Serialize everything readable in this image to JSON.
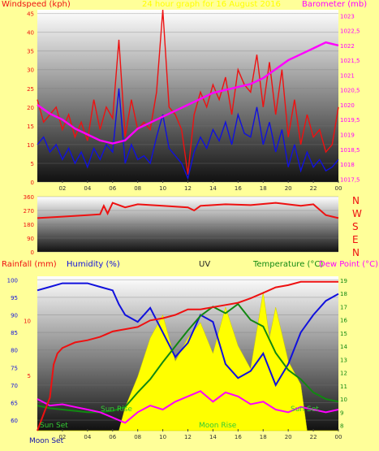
{
  "colors": {
    "windspeed": "#ee1111",
    "barometer": "#ff00ff",
    "direction": "#ee1111",
    "rainfall": "#ee1111",
    "humidity": "#1111dd",
    "uv": "#ffff00",
    "temperature": "#118811",
    "dewpoint": "#ff00ff",
    "title": "#ffff00",
    "text_dark": "#222222",
    "nwsen": "#ee1111"
  },
  "chart_data": [
    {
      "type": "line",
      "left_axis_label": "Windspeed (kph)",
      "right_axis_label": "Barometer (mb)",
      "title": "24 hour graph for 16 August 2016",
      "x_ticks": [
        "02",
        "04",
        "06",
        "08",
        "10",
        "12",
        "14",
        "16",
        "18",
        "20",
        "22",
        "00"
      ],
      "y_left_ticks": [
        "0",
        "5",
        "10",
        "15",
        "20",
        "25",
        "30",
        "35",
        "40",
        "45"
      ],
      "y_left_range": [
        0,
        46
      ],
      "y_right_ticks": [
        "1017,5",
        "1018",
        "1018,5",
        "1019",
        "1019,5",
        "1020",
        "1020,5",
        "1021",
        "1021,5",
        "1022",
        "1022,5",
        "1023"
      ],
      "y_right_range": [
        1017.4,
        1023.2
      ],
      "series": [
        {
          "name": "gust",
          "x": [
            0,
            0.5,
            1,
            1.5,
            2,
            2.5,
            3,
            3.5,
            4,
            4.5,
            5,
            5.5,
            6,
            6.5,
            7,
            7.5,
            8,
            8.5,
            9,
            9.5,
            10,
            10.5,
            11,
            11.5,
            12,
            12.5,
            13,
            13.5,
            14,
            14.5,
            15,
            15.5,
            16,
            16.5,
            17,
            17.5,
            18,
            18.5,
            19,
            19.5,
            20,
            20.5,
            21,
            21.5,
            22,
            22.5,
            23,
            23.5,
            24
          ],
          "y": [
            22,
            16,
            18,
            20,
            14,
            18,
            12,
            16,
            11,
            22,
            14,
            20,
            17,
            38,
            12,
            22,
            14,
            16,
            14,
            24,
            46,
            20,
            18,
            14,
            2,
            18,
            24,
            20,
            26,
            22,
            28,
            18,
            30,
            26,
            24,
            34,
            20,
            32,
            18,
            30,
            12,
            22,
            10,
            18,
            12,
            14,
            8,
            10,
            20
          ]
        },
        {
          "name": "average",
          "x": [
            0,
            0.5,
            1,
            1.5,
            2,
            2.5,
            3,
            3.5,
            4,
            4.5,
            5,
            5.5,
            6,
            6.5,
            7,
            7.5,
            8,
            8.5,
            9,
            9.5,
            10,
            10.5,
            11,
            11.5,
            12,
            12.5,
            13,
            13.5,
            14,
            14.5,
            15,
            15.5,
            16,
            16.5,
            17,
            17.5,
            18,
            18.5,
            19,
            19.5,
            20,
            20.5,
            21,
            21.5,
            22,
            22.5,
            23,
            23.5,
            24
          ],
          "y": [
            10,
            12,
            8,
            10,
            6,
            9,
            5,
            8,
            4,
            9,
            6,
            10,
            8,
            25,
            5,
            10,
            6,
            7,
            5,
            12,
            18,
            9,
            7,
            5,
            1,
            8,
            12,
            9,
            14,
            11,
            16,
            10,
            18,
            13,
            12,
            20,
            10,
            16,
            8,
            14,
            4,
            10,
            3,
            8,
            4,
            6,
            3,
            4,
            6
          ]
        },
        {
          "name": "barometer",
          "x": [
            0,
            1,
            2,
            3,
            4,
            5,
            6,
            7,
            8,
            9,
            10,
            11,
            12,
            13,
            14,
            15,
            16,
            17,
            18,
            19,
            20,
            21,
            22,
            23,
            24
          ],
          "y": [
            1020,
            1019.7,
            1019.5,
            1019.2,
            1019,
            1018.8,
            1018.7,
            1018.8,
            1019.2,
            1019.4,
            1019.6,
            1019.8,
            1020,
            1020.2,
            1020.4,
            1020.5,
            1020.6,
            1020.7,
            1020.9,
            1021.2,
            1021.5,
            1021.7,
            1021.9,
            1022.1,
            1022
          ]
        }
      ]
    },
    {
      "type": "line",
      "left_axis_label": "",
      "right_axis_label": "NWSEN",
      "y_left_ticks": [
        "0",
        "90",
        "180",
        "270",
        "360"
      ],
      "y_left_range": [
        0,
        360
      ],
      "compass_letters": [
        "N",
        "W",
        "S",
        "E",
        "N"
      ],
      "series": [
        {
          "name": "wind direction",
          "x": [
            0,
            2,
            4,
            5,
            5.3,
            5.6,
            6,
            7,
            8,
            10,
            12,
            12.5,
            13,
            15,
            17,
            19,
            21,
            22,
            23,
            24
          ],
          "y": [
            220,
            230,
            240,
            245,
            300,
            250,
            320,
            290,
            310,
            300,
            290,
            270,
            300,
            310,
            305,
            320,
            300,
            310,
            240,
            220
          ]
        }
      ]
    },
    {
      "type": "line",
      "left_axis_label": "Rainfall (mm)",
      "humidity_label": "Humidity (%)",
      "uv_label": "UV",
      "right_axis_label": "Temperature (°C)",
      "dewpoint_label": "Dew Point (°C)",
      "y_humidity_ticks": [
        "60",
        "65",
        "70",
        "75",
        "80",
        "85",
        "90",
        "95",
        "100"
      ],
      "y_humidity_range": [
        57,
        101
      ],
      "y_rain_ticks": [
        "5",
        "10"
      ],
      "y_rain_range": [
        0,
        14
      ],
      "y_temp_ticks": [
        "8",
        "9",
        "10",
        "11",
        "12",
        "13",
        "14",
        "15",
        "16",
        "17",
        "18",
        "19"
      ],
      "y_temp_range": [
        7.6,
        19.3
      ],
      "annotations": [
        "Sun Set",
        "Moon Set",
        "Sun Rise",
        "Moon Rise",
        "Sun Set"
      ],
      "series": [
        {
          "name": "rainfall",
          "x": [
            0,
            0.5,
            1,
            1.3,
            1.6,
            2,
            3,
            4,
            5,
            6,
            7,
            8,
            9,
            10,
            11,
            12,
            13,
            14,
            15,
            16,
            17,
            18,
            19,
            20,
            21,
            22,
            23,
            24
          ],
          "y": [
            0,
            1.5,
            3,
            6,
            7,
            7.5,
            8,
            8.2,
            8.5,
            9,
            9.2,
            9.4,
            10,
            10.2,
            10.5,
            11,
            11,
            11.2,
            11.4,
            11.6,
            12,
            12.5,
            13,
            13.2,
            13.5,
            13.5,
            13.5,
            13.5
          ]
        },
        {
          "name": "humidity",
          "x": [
            0,
            1,
            2,
            3,
            4,
            5,
            6,
            6.5,
            7,
            8,
            9,
            10,
            11,
            12,
            13,
            14,
            15,
            16,
            17,
            18,
            19,
            20,
            21,
            22,
            23,
            24
          ],
          "y": [
            97,
            98,
            99,
            99,
            99,
            98,
            97,
            93,
            90,
            88,
            92,
            85,
            78,
            82,
            90,
            88,
            76,
            72,
            74,
            79,
            70,
            76,
            85,
            90,
            94,
            96
          ]
        },
        {
          "name": "temperature",
          "x": [
            0,
            1,
            2,
            3,
            4,
            5,
            6,
            7,
            8,
            9,
            10,
            11,
            12,
            13,
            14,
            15,
            16,
            17,
            18,
            19,
            20,
            21,
            22,
            23,
            24
          ],
          "y": [
            9.5,
            9.3,
            9.2,
            9.1,
            9,
            9,
            9.1,
            9.4,
            10.5,
            11.5,
            12.8,
            14,
            15.2,
            16.3,
            17,
            16.5,
            17.2,
            16,
            15.5,
            13.5,
            12.2,
            11.5,
            10.5,
            10,
            9.8
          ]
        },
        {
          "name": "dewpoint",
          "x": [
            0,
            1,
            2,
            3,
            4,
            5,
            6,
            7,
            8,
            9,
            10,
            11,
            12,
            13,
            14,
            15,
            16,
            17,
            18,
            19,
            20,
            21,
            22,
            23,
            24
          ],
          "y": [
            10,
            9.5,
            9.6,
            9.4,
            9.2,
            9,
            8.6,
            8.2,
            9,
            9.5,
            9.2,
            9.8,
            10.2,
            10.6,
            9.8,
            10.5,
            10.2,
            9.6,
            9.8,
            9.2,
            9,
            9.4,
            9.2,
            9,
            9.2
          ]
        },
        {
          "name": "uv",
          "x": [
            0,
            6.5,
            7,
            8,
            9,
            10,
            11,
            12,
            13,
            14,
            15,
            16,
            17,
            18,
            18.5,
            19,
            20,
            21,
            21.5,
            24
          ],
          "y": [
            0,
            0,
            3,
            7,
            12,
            15,
            9,
            12,
            14,
            10,
            16,
            11,
            8,
            18,
            12,
            16,
            9,
            6,
            0,
            0
          ]
        }
      ]
    }
  ]
}
